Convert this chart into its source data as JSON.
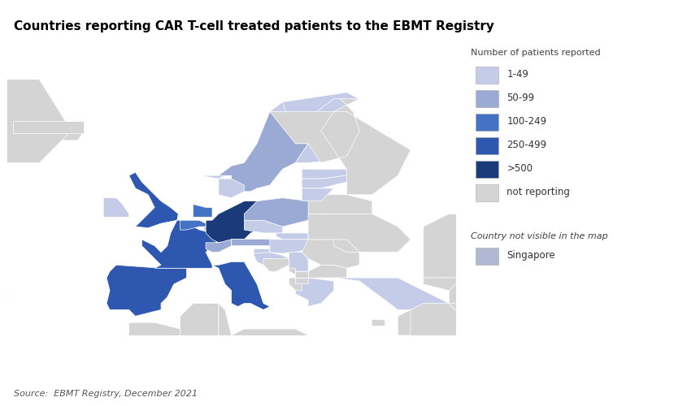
{
  "title": "Countries reporting CAR T-cell treated patients to the EBMT Registry",
  "source": "Source:  EBMT Registry, December 2021",
  "legend_title": "Number of patients reported",
  "legend_title2": "Country not visible in the map",
  "categories": {
    "1-49": "#c5cce8",
    "50-99": "#9baad4",
    "100-249": "#4472c4",
    "250-499": "#2e58b0",
    "500+": "#1a3a7a",
    "not_reporting": "#d4d4d4",
    "singapore": "#b0b8d4"
  },
  "background_color": "#ffffff",
  "map_xlim": [
    -25,
    45
  ],
  "map_ylim": [
    33,
    73
  ]
}
